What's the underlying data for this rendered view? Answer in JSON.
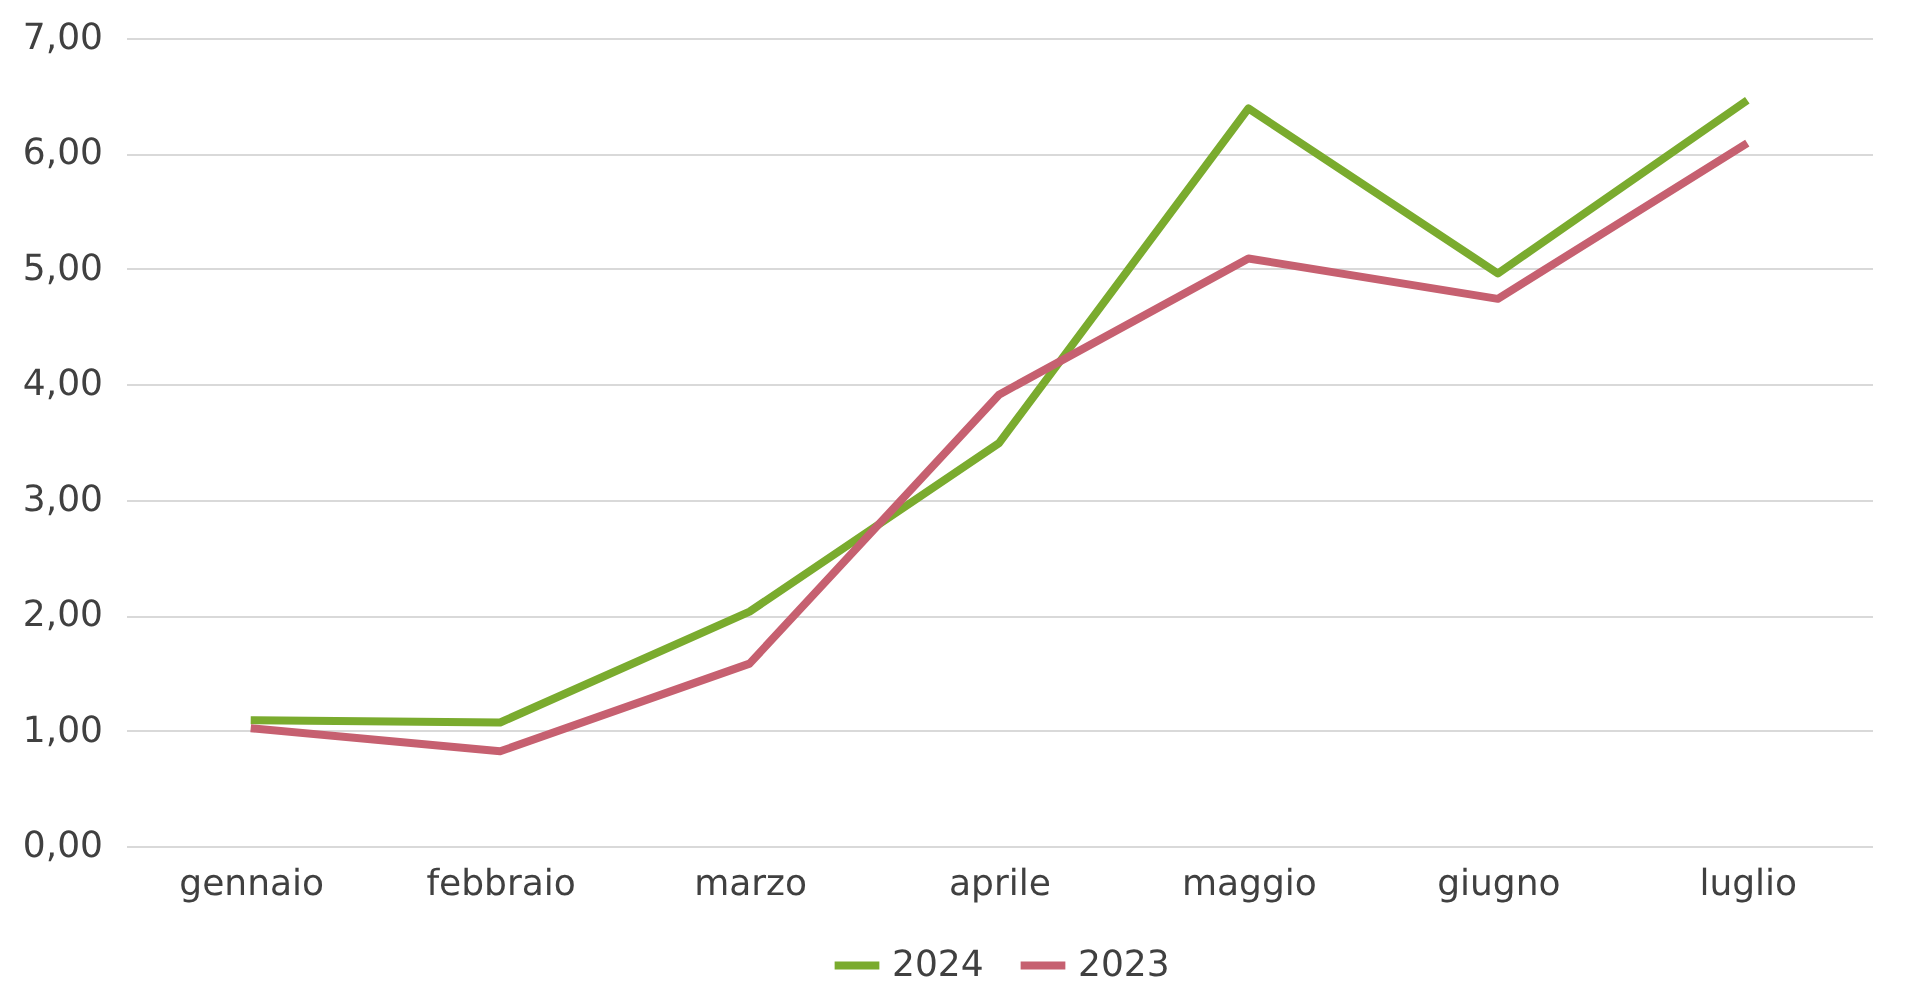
{
  "chart_data": {
    "type": "line",
    "categories": [
      "gennaio",
      "febbraio",
      "marzo",
      "aprile",
      "maggio",
      "giugno",
      "luglio"
    ],
    "series": [
      {
        "name": "2024",
        "color": "#7aab2e",
        "values": [
          1.09,
          1.07,
          2.03,
          3.49,
          6.39,
          4.96,
          6.46
        ]
      },
      {
        "name": "2023",
        "color": "#c66070",
        "values": [
          1.02,
          0.82,
          1.58,
          3.91,
          5.09,
          4.74,
          6.09
        ]
      }
    ],
    "ylim": [
      0,
      7
    ],
    "yticks": [
      {
        "value": 0,
        "label": "0,00"
      },
      {
        "value": 1,
        "label": "1,00"
      },
      {
        "value": 2,
        "label": "2,00"
      },
      {
        "value": 3,
        "label": "3,00"
      },
      {
        "value": 4,
        "label": "4,00"
      },
      {
        "value": 5,
        "label": "5,00"
      },
      {
        "value": 6,
        "label": "6,00"
      },
      {
        "value": 7,
        "label": "7,00"
      }
    ],
    "grid": "y",
    "legend": "bottom",
    "marker": "none",
    "line_style": "solid"
  }
}
